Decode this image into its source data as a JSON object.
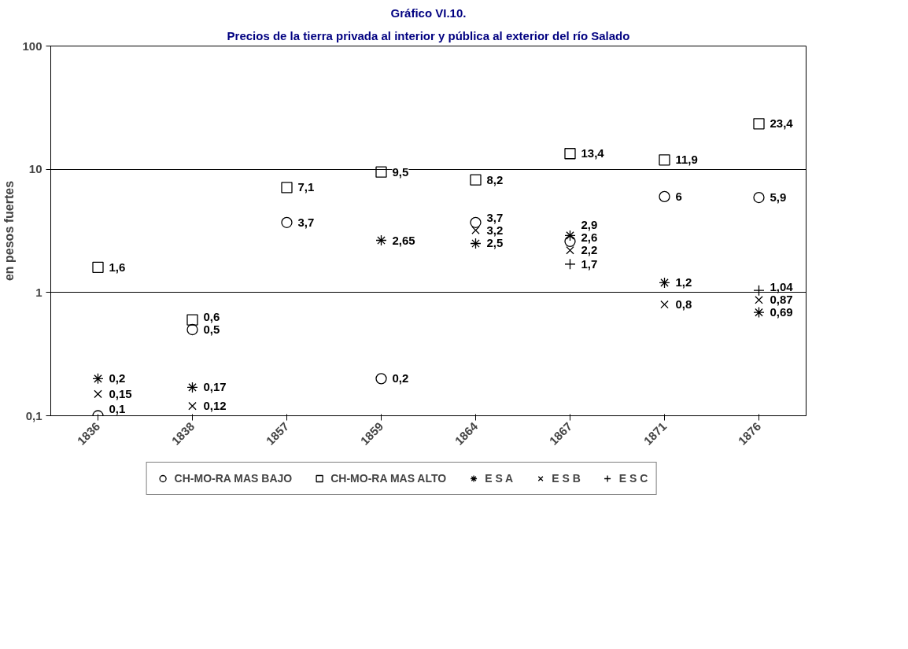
{
  "chart_data": {
    "type": "scatter",
    "title": "Gráfico VI.10.",
    "subtitle": "Precios de la tierra privada al interior y pública al exterior del río Salado",
    "ylabel": "en pesos fuertes",
    "categories": [
      "1836",
      "1838",
      "1857",
      "1859",
      "1864",
      "1867",
      "1871",
      "1876"
    ],
    "series": [
      {
        "name": "CH-MO-RA MAS BAJO",
        "color": "#000000",
        "marker": "circle",
        "values": [
          0.1,
          0.5,
          3.7,
          0.2,
          3.7,
          2.6,
          6,
          5.9
        ],
        "value_labels": [
          "0,1",
          "0,5",
          "3,7",
          "0,2",
          "3,7",
          "2,6",
          "6",
          "5,9"
        ]
      },
      {
        "name": "CH-MO-RA MAS ALTO",
        "color": "#000000",
        "marker": "square",
        "values": [
          1.6,
          0.6,
          7.1,
          9.5,
          8.2,
          13.4,
          11.9,
          23.4
        ],
        "value_labels": [
          "1,6",
          "0,6",
          "7,1",
          "9,5",
          "8,2",
          "13,4",
          "11,9",
          "23,4"
        ]
      },
      {
        "name": "E S A",
        "color": "#000000",
        "values": [
          0.2,
          0.17,
          null,
          2.65,
          2.5,
          2.9,
          1.2,
          0.69
        ],
        "value_labels": [
          "0,2",
          "0,17",
          null,
          "2,65",
          "2,5",
          "2,9",
          "1,2",
          "0,69"
        ]
      },
      {
        "name": "E S B",
        "color": "#000000",
        "marker": "x",
        "values": [
          0.15,
          0.12,
          null,
          null,
          3.2,
          2.2,
          0.8,
          0.87
        ],
        "value_labels": [
          "0,15",
          "0,12",
          null,
          null,
          "3,2",
          "2,2",
          "0,8",
          "0,87"
        ]
      },
      {
        "name": "E S C",
        "color": "#000000",
        "marker": "cross",
        "values": [
          null,
          null,
          null,
          null,
          null,
          1.7,
          null,
          1.04
        ],
        "value_labels": [
          null,
          null,
          null,
          null,
          null,
          "1,7",
          null,
          "1,04"
        ]
      }
    ],
    "log": true,
    "ylim": [
      0.1,
      100
    ],
    "yticks": [
      {
        "value": 0.1,
        "label": "0,1"
      },
      1,
      10,
      100
    ],
    "grid": "y",
    "legend": "bottom"
  }
}
